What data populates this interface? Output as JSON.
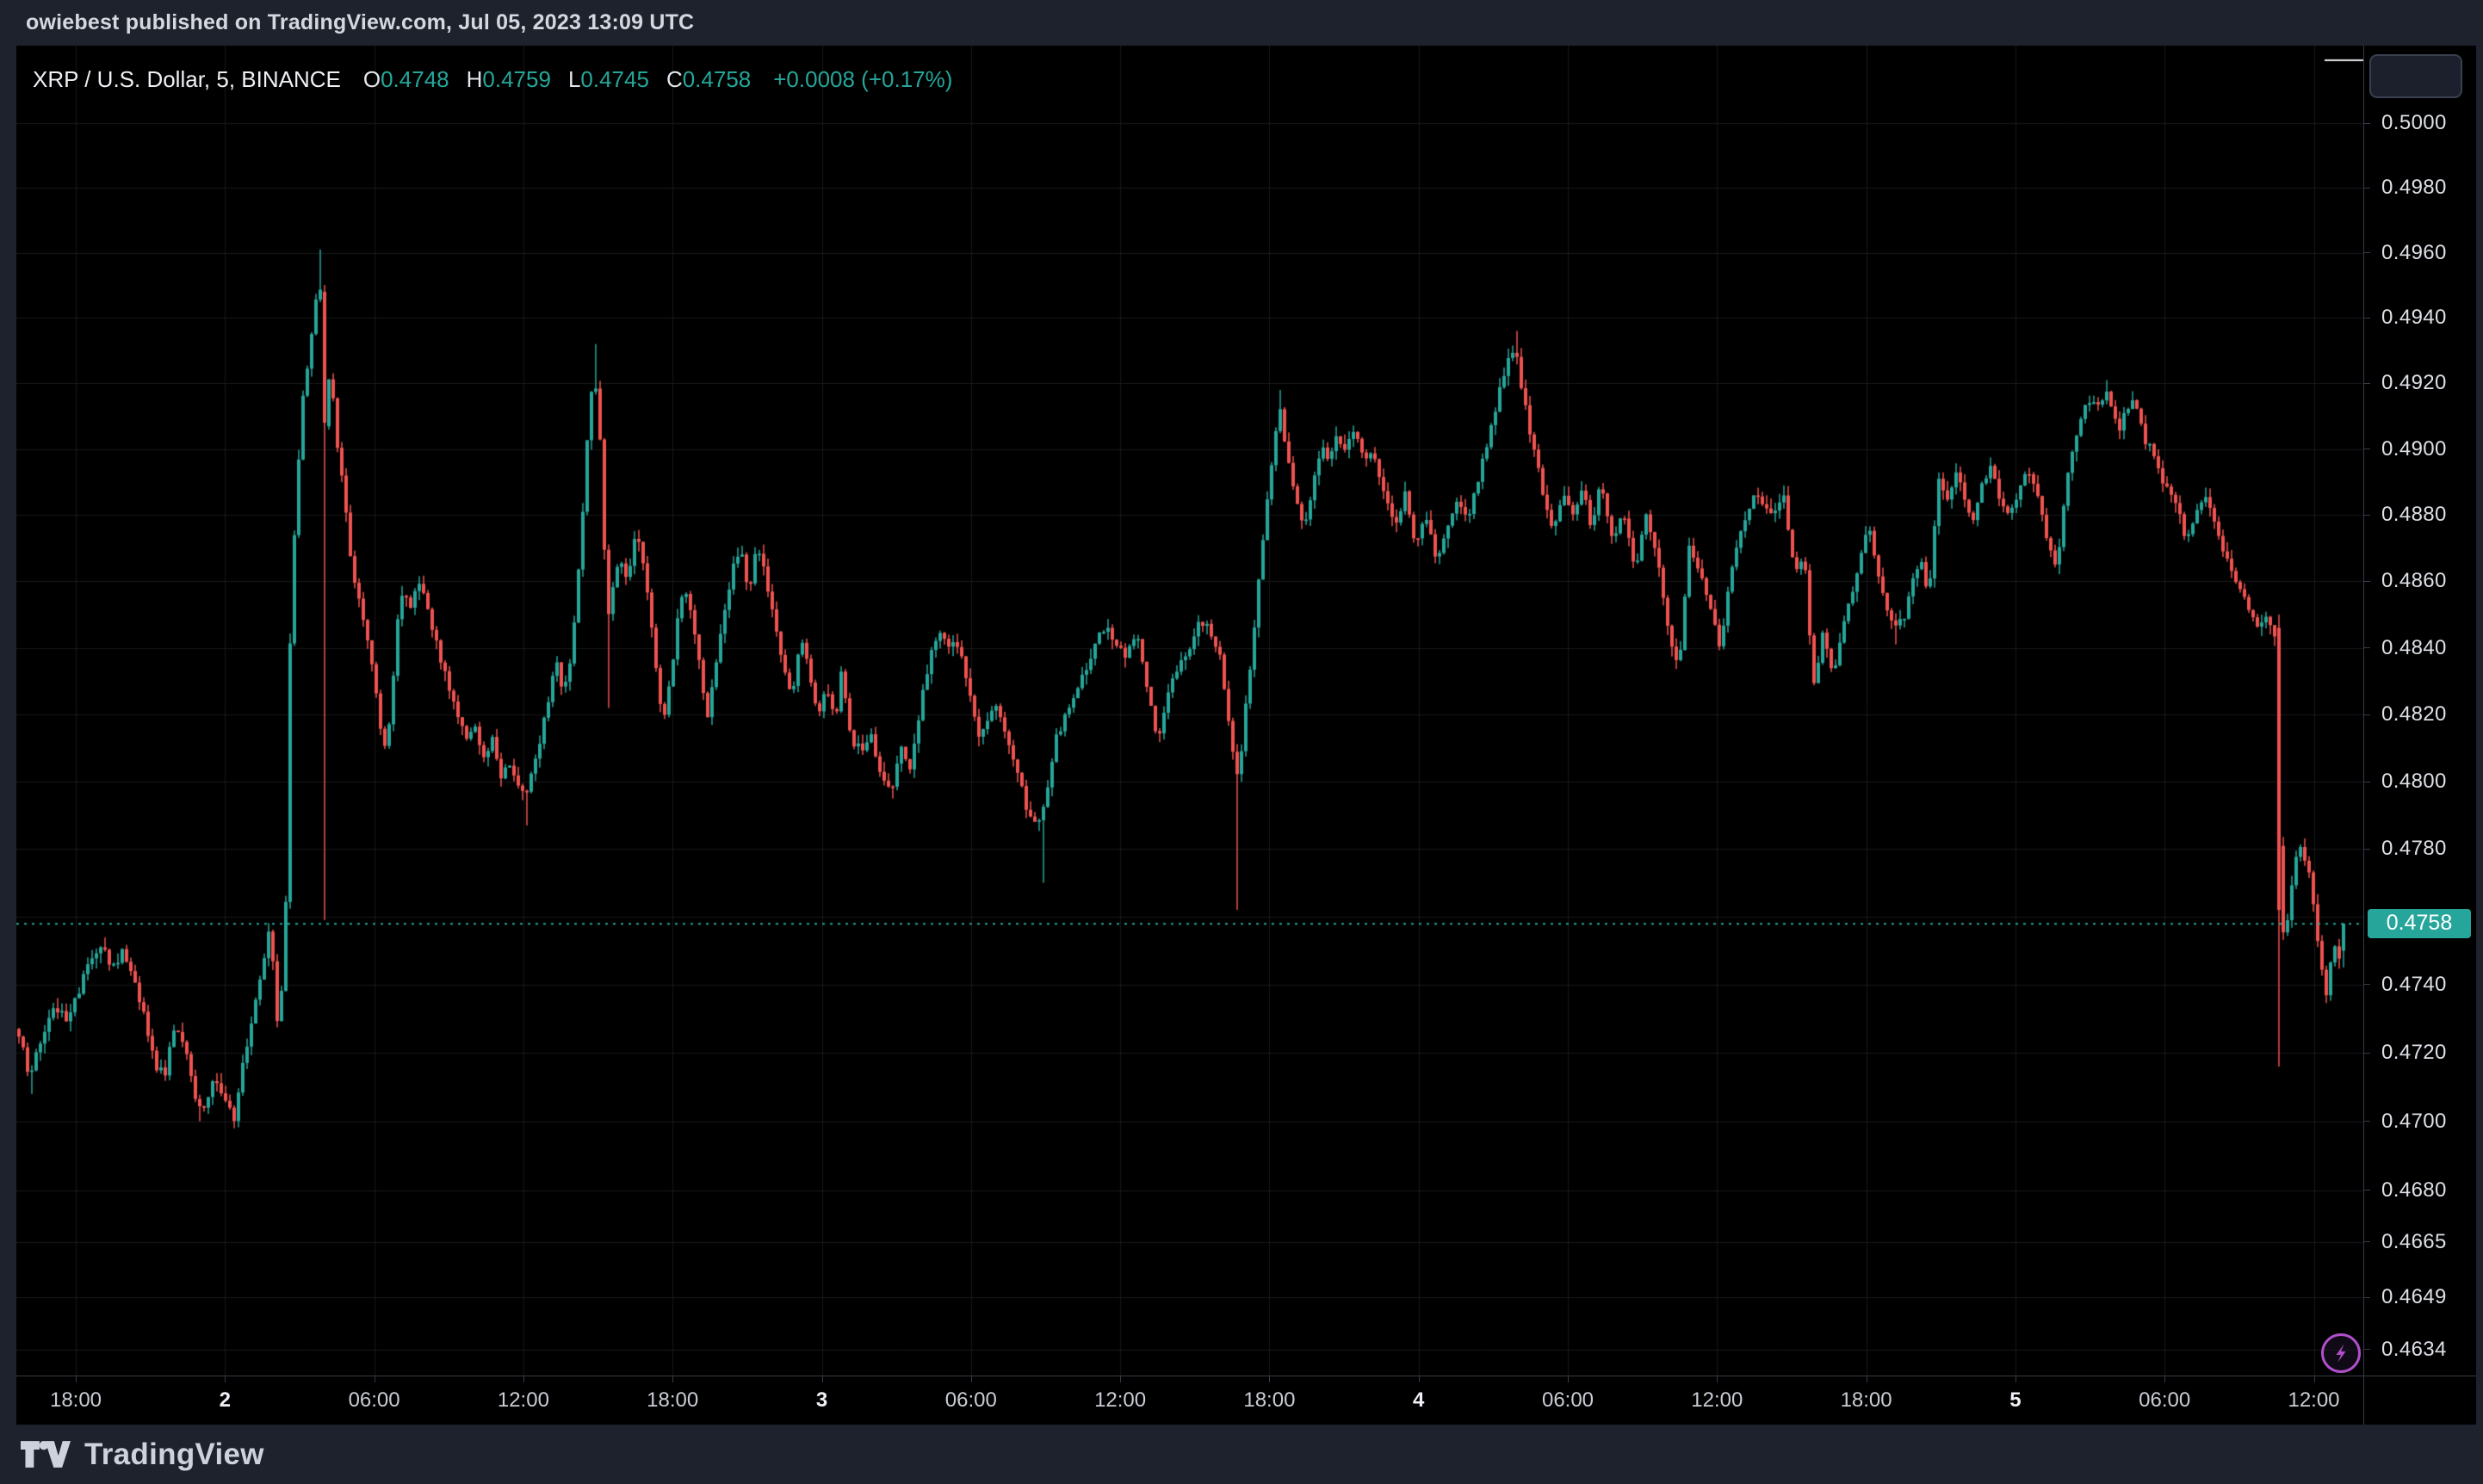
{
  "header": {
    "attribution": "owiebest published on TradingView.com, Jul 05, 2023 13:09 UTC"
  },
  "legend": {
    "symbol": "XRP / U.S. Dollar, 5, BINANCE",
    "items": [
      {
        "label": "O",
        "value": "0.4748"
      },
      {
        "label": "H",
        "value": "0.4759"
      },
      {
        "label": "L",
        "value": "0.4745"
      },
      {
        "label": "C",
        "value": "0.4758"
      }
    ],
    "change": "+0.0008 (+0.17%)"
  },
  "price_axis": {
    "current_price_label": "0.4758",
    "ticks": [
      {
        "label": "0.5000",
        "value": 0.5
      },
      {
        "label": "0.4980",
        "value": 0.498
      },
      {
        "label": "0.4960",
        "value": 0.496
      },
      {
        "label": "0.4940",
        "value": 0.494
      },
      {
        "label": "0.4920",
        "value": 0.492
      },
      {
        "label": "0.4900",
        "value": 0.49
      },
      {
        "label": "0.4880",
        "value": 0.488
      },
      {
        "label": "0.4860",
        "value": 0.486
      },
      {
        "label": "0.4840",
        "value": 0.484
      },
      {
        "label": "0.4820",
        "value": 0.482
      },
      {
        "label": "0.4800",
        "value": 0.48
      },
      {
        "label": "0.4780",
        "value": 0.478
      },
      {
        "label": "0.4740",
        "value": 0.474
      },
      {
        "label": "0.4720",
        "value": 0.472
      },
      {
        "label": "0.4700",
        "value": 0.47
      },
      {
        "label": "0.4680",
        "value": 0.468
      },
      {
        "label": "0.4665",
        "value": 0.4665
      },
      {
        "label": "0.4649",
        "value": 0.4649
      },
      {
        "label": "0.4634",
        "value": 0.4634
      }
    ],
    "grid_only_levels": [
      0.476
    ]
  },
  "time_axis": {
    "ticks": [
      {
        "label": "18:00",
        "bold": false
      },
      {
        "label": "2",
        "bold": true
      },
      {
        "label": "06:00",
        "bold": false
      },
      {
        "label": "12:00",
        "bold": false
      },
      {
        "label": "18:00",
        "bold": false
      },
      {
        "label": "3",
        "bold": true
      },
      {
        "label": "06:00",
        "bold": false
      },
      {
        "label": "12:00",
        "bold": false
      },
      {
        "label": "18:00",
        "bold": false
      },
      {
        "label": "4",
        "bold": true
      },
      {
        "label": "06:00",
        "bold": false
      },
      {
        "label": "12:00",
        "bold": false
      },
      {
        "label": "18:00",
        "bold": false
      },
      {
        "label": "5",
        "bold": true
      },
      {
        "label": "06:00",
        "bold": false
      },
      {
        "label": "12:00",
        "bold": false
      }
    ]
  },
  "footer": {
    "brand": "TradingView"
  },
  "icons": {
    "lightning": "lightning-bolt",
    "brand_glyph": "tradingview-logo"
  },
  "colors": {
    "up": "#26a69a",
    "down": "#ef5350",
    "accent": "#26a69a",
    "purple": "#b14fcb",
    "plot_bg": "#000000",
    "frame_bg": "#1e222d",
    "grid": "#191919",
    "border": "#363b47",
    "axis_text": "#dde0e6",
    "tag_text": "#ffffff"
  },
  "chart_data": {
    "type": "candlestick",
    "title": "XRP / U.S. Dollar, 5, BINANCE",
    "symbol": "XRP / U.S. Dollar",
    "interval": "5",
    "exchange": "BINANCE",
    "ohlc": {
      "open": 0.4748,
      "high": 0.4759,
      "low": 0.4745,
      "close": 0.4758,
      "change": "+0.0008",
      "change_pct": "+0.17%"
    },
    "last_price": 0.4758,
    "scale": "log",
    "ylim": [
      0.4634,
      0.5012
    ],
    "xlabels_utc": [
      "18:00",
      "Jul 2",
      "06:00",
      "12:00",
      "18:00",
      "Jul 3",
      "06:00",
      "12:00",
      "18:00",
      "Jul 4",
      "06:00",
      "12:00",
      "18:00",
      "Jul 5",
      "06:00",
      "12:00"
    ],
    "grid": true,
    "legend_position": "top-left",
    "price_map": {
      "y0": 143,
      "k": 18743,
      "p0": 0.5
    },
    "plot": {
      "x0": 19,
      "x1": 2745,
      "y0": 53,
      "y1": 1598
    },
    "candle_start_x": 20,
    "candle_pitch": 5,
    "candle_count": 541,
    "time_ticks_x_start": 88,
    "time_ticks_spacing": 173.3,
    "price_path": [
      [
        20,
        0.4727
      ],
      [
        35,
        0.4713
      ],
      [
        50,
        0.4726
      ],
      [
        64,
        0.4733
      ],
      [
        78,
        0.473
      ],
      [
        92,
        0.4738
      ],
      [
        105,
        0.4748
      ],
      [
        118,
        0.4752
      ],
      [
        130,
        0.4744
      ],
      [
        143,
        0.475
      ],
      [
        156,
        0.4742
      ],
      [
        168,
        0.473
      ],
      [
        180,
        0.4716
      ],
      [
        192,
        0.4714
      ],
      [
        203,
        0.4729
      ],
      [
        214,
        0.4722
      ],
      [
        226,
        0.4708
      ],
      [
        238,
        0.4703
      ],
      [
        250,
        0.4713
      ],
      [
        261,
        0.4707
      ],
      [
        271,
        0.47
      ],
      [
        282,
        0.4716
      ],
      [
        294,
        0.4731
      ],
      [
        305,
        0.4744
      ],
      [
        314,
        0.476
      ],
      [
        322,
        0.4728
      ],
      [
        331,
        0.4748
      ],
      [
        338,
        0.4858
      ],
      [
        345,
        0.4888
      ],
      [
        352,
        0.4916
      ],
      [
        359,
        0.4928
      ],
      [
        366,
        0.4944
      ],
      [
        371,
        0.4957
      ],
      [
        377,
        0.4908
      ],
      [
        384,
        0.4925
      ],
      [
        391,
        0.4902
      ],
      [
        399,
        0.4888
      ],
      [
        407,
        0.4868
      ],
      [
        415,
        0.4856
      ],
      [
        423,
        0.4846
      ],
      [
        431,
        0.4836
      ],
      [
        439,
        0.4822
      ],
      [
        446,
        0.4808
      ],
      [
        453,
        0.4818
      ],
      [
        461,
        0.4846
      ],
      [
        469,
        0.4858
      ],
      [
        477,
        0.4852
      ],
      [
        485,
        0.4862
      ],
      [
        493,
        0.4855
      ],
      [
        502,
        0.4846
      ],
      [
        512,
        0.4836
      ],
      [
        522,
        0.4828
      ],
      [
        532,
        0.482
      ],
      [
        542,
        0.4812
      ],
      [
        552,
        0.4816
      ],
      [
        562,
        0.4808
      ],
      [
        572,
        0.4812
      ],
      [
        582,
        0.48
      ],
      [
        590,
        0.4806
      ],
      [
        598,
        0.48
      ],
      [
        606,
        0.4796
      ],
      [
        613,
        0.4798
      ],
      [
        621,
        0.4806
      ],
      [
        629,
        0.4814
      ],
      [
        637,
        0.4824
      ],
      [
        645,
        0.4838
      ],
      [
        653,
        0.4826
      ],
      [
        661,
        0.4834
      ],
      [
        669,
        0.4854
      ],
      [
        677,
        0.488
      ],
      [
        684,
        0.491
      ],
      [
        690,
        0.4926
      ],
      [
        697,
        0.4902
      ],
      [
        705,
        0.4848
      ],
      [
        713,
        0.486
      ],
      [
        721,
        0.4868
      ],
      [
        729,
        0.4858
      ],
      [
        737,
        0.4872
      ],
      [
        745,
        0.487
      ],
      [
        753,
        0.4856
      ],
      [
        762,
        0.4834
      ],
      [
        770,
        0.4818
      ],
      [
        779,
        0.483
      ],
      [
        788,
        0.485
      ],
      [
        796,
        0.4858
      ],
      [
        805,
        0.4848
      ],
      [
        814,
        0.4832
      ],
      [
        822,
        0.482
      ],
      [
        832,
        0.4836
      ],
      [
        842,
        0.4852
      ],
      [
        851,
        0.4864
      ],
      [
        860,
        0.487
      ],
      [
        870,
        0.4856
      ],
      [
        880,
        0.4872
      ],
      [
        890,
        0.486
      ],
      [
        900,
        0.4846
      ],
      [
        910,
        0.4834
      ],
      [
        920,
        0.4824
      ],
      [
        930,
        0.4844
      ],
      [
        940,
        0.4832
      ],
      [
        950,
        0.482
      ],
      [
        960,
        0.4828
      ],
      [
        970,
        0.4818
      ],
      [
        978,
        0.4834
      ],
      [
        988,
        0.4812
      ],
      [
        1000,
        0.481
      ],
      [
        1012,
        0.4814
      ],
      [
        1024,
        0.48
      ],
      [
        1036,
        0.4797
      ],
      [
        1046,
        0.4812
      ],
      [
        1056,
        0.4803
      ],
      [
        1068,
        0.482
      ],
      [
        1080,
        0.4838
      ],
      [
        1092,
        0.4845
      ],
      [
        1104,
        0.4841
      ],
      [
        1116,
        0.4839
      ],
      [
        1126,
        0.4827
      ],
      [
        1138,
        0.4812
      ],
      [
        1148,
        0.4818
      ],
      [
        1158,
        0.4824
      ],
      [
        1170,
        0.4812
      ],
      [
        1182,
        0.4803
      ],
      [
        1194,
        0.479
      ],
      [
        1205,
        0.4787
      ],
      [
        1214,
        0.4793
      ],
      [
        1226,
        0.4812
      ],
      [
        1238,
        0.482
      ],
      [
        1250,
        0.4828
      ],
      [
        1262,
        0.4834
      ],
      [
        1272,
        0.4841
      ],
      [
        1284,
        0.4847
      ],
      [
        1296,
        0.4842
      ],
      [
        1308,
        0.4838
      ],
      [
        1320,
        0.4845
      ],
      [
        1332,
        0.4828
      ],
      [
        1344,
        0.4812
      ],
      [
        1356,
        0.4826
      ],
      [
        1368,
        0.4834
      ],
      [
        1380,
        0.4838
      ],
      [
        1394,
        0.4848
      ],
      [
        1406,
        0.4845
      ],
      [
        1418,
        0.4838
      ],
      [
        1428,
        0.4815
      ],
      [
        1438,
        0.48
      ],
      [
        1447,
        0.4822
      ],
      [
        1455,
        0.4842
      ],
      [
        1463,
        0.4862
      ],
      [
        1471,
        0.4882
      ],
      [
        1479,
        0.49
      ],
      [
        1487,
        0.4911
      ],
      [
        1495,
        0.4898
      ],
      [
        1505,
        0.4886
      ],
      [
        1515,
        0.4876
      ],
      [
        1525,
        0.489
      ],
      [
        1535,
        0.4902
      ],
      [
        1545,
        0.4896
      ],
      [
        1553,
        0.4904
      ],
      [
        1562,
        0.4899
      ],
      [
        1572,
        0.4906
      ],
      [
        1584,
        0.4896
      ],
      [
        1596,
        0.4898
      ],
      [
        1608,
        0.4886
      ],
      [
        1620,
        0.4877
      ],
      [
        1632,
        0.4886
      ],
      [
        1644,
        0.4872
      ],
      [
        1656,
        0.488
      ],
      [
        1668,
        0.4866
      ],
      [
        1680,
        0.4874
      ],
      [
        1692,
        0.4884
      ],
      [
        1704,
        0.4878
      ],
      [
        1716,
        0.489
      ],
      [
        1728,
        0.4902
      ],
      [
        1740,
        0.4916
      ],
      [
        1752,
        0.4928
      ],
      [
        1760,
        0.4931
      ],
      [
        1768,
        0.4918
      ],
      [
        1776,
        0.4906
      ],
      [
        1784,
        0.4898
      ],
      [
        1792,
        0.4886
      ],
      [
        1804,
        0.4876
      ],
      [
        1816,
        0.4886
      ],
      [
        1828,
        0.488
      ],
      [
        1840,
        0.4888
      ],
      [
        1848,
        0.4874
      ],
      [
        1858,
        0.489
      ],
      [
        1873,
        0.4872
      ],
      [
        1885,
        0.4882
      ],
      [
        1900,
        0.4863
      ],
      [
        1912,
        0.488
      ],
      [
        1925,
        0.4868
      ],
      [
        1938,
        0.4845
      ],
      [
        1950,
        0.4832
      ],
      [
        1962,
        0.487
      ],
      [
        1975,
        0.4862
      ],
      [
        1988,
        0.4852
      ],
      [
        1998,
        0.484
      ],
      [
        2010,
        0.4862
      ],
      [
        2022,
        0.4874
      ],
      [
        2035,
        0.4886
      ],
      [
        2048,
        0.4884
      ],
      [
        2060,
        0.488
      ],
      [
        2072,
        0.4886
      ],
      [
        2085,
        0.4862
      ],
      [
        2096,
        0.4866
      ],
      [
        2106,
        0.4828
      ],
      [
        2118,
        0.4845
      ],
      [
        2130,
        0.4832
      ],
      [
        2142,
        0.4848
      ],
      [
        2156,
        0.486
      ],
      [
        2170,
        0.4878
      ],
      [
        2180,
        0.4862
      ],
      [
        2190,
        0.4854
      ],
      [
        2200,
        0.4846
      ],
      [
        2212,
        0.485
      ],
      [
        2222,
        0.486
      ],
      [
        2232,
        0.4866
      ],
      [
        2240,
        0.4856
      ],
      [
        2252,
        0.489
      ],
      [
        2262,
        0.4884
      ],
      [
        2272,
        0.4892
      ],
      [
        2282,
        0.4886
      ],
      [
        2292,
        0.4878
      ],
      [
        2302,
        0.489
      ],
      [
        2312,
        0.4894
      ],
      [
        2322,
        0.4886
      ],
      [
        2334,
        0.4878
      ],
      [
        2344,
        0.4888
      ],
      [
        2355,
        0.4895
      ],
      [
        2366,
        0.4888
      ],
      [
        2378,
        0.4872
      ],
      [
        2390,
        0.4864
      ],
      [
        2400,
        0.489
      ],
      [
        2412,
        0.4905
      ],
      [
        2424,
        0.4915
      ],
      [
        2436,
        0.4912
      ],
      [
        2448,
        0.4918
      ],
      [
        2460,
        0.4905
      ],
      [
        2470,
        0.4912
      ],
      [
        2480,
        0.4915
      ],
      [
        2492,
        0.4902
      ],
      [
        2504,
        0.4898
      ],
      [
        2514,
        0.4888
      ],
      [
        2526,
        0.4886
      ],
      [
        2538,
        0.4872
      ],
      [
        2548,
        0.4878
      ],
      [
        2560,
        0.4886
      ],
      [
        2572,
        0.4878
      ],
      [
        2584,
        0.4868
      ],
      [
        2596,
        0.486
      ],
      [
        2608,
        0.4854
      ],
      [
        2620,
        0.4846
      ],
      [
        2632,
        0.485
      ],
      [
        2642,
        0.4844
      ],
      [
        2648,
        0.4768
      ],
      [
        2654,
        0.4748
      ],
      [
        2660,
        0.4768
      ],
      [
        2666,
        0.4776
      ],
      [
        2672,
        0.4782
      ],
      [
        2678,
        0.4776
      ],
      [
        2684,
        0.477
      ],
      [
        2690,
        0.4756
      ],
      [
        2696,
        0.4744
      ],
      [
        2702,
        0.4738
      ],
      [
        2708,
        0.4748
      ],
      [
        2714,
        0.4752
      ],
      [
        2720,
        0.4746
      ],
      [
        2727,
        0.4754
      ],
      [
        2740,
        0.4758
      ]
    ],
    "wick_events": [
      {
        "x": 35,
        "low": 0.4708
      },
      {
        "x": 233,
        "low": 0.47
      },
      {
        "x": 271,
        "low": 0.4698
      },
      {
        "x": 371,
        "high": 0.4961
      },
      {
        "x": 377,
        "open": 0.4948,
        "close": 0.4908,
        "low": 0.4759
      },
      {
        "x": 613,
        "low": 0.4787
      },
      {
        "x": 690,
        "high": 0.4932
      },
      {
        "x": 705,
        "low": 0.4822
      },
      {
        "x": 1036,
        "low": 0.4795
      },
      {
        "x": 1214,
        "low": 0.477
      },
      {
        "x": 1438,
        "low": 0.4762
      },
      {
        "x": 1487,
        "high": 0.4918
      },
      {
        "x": 1760,
        "high": 0.4936
      },
      {
        "x": 2200,
        "low": 0.4841
      },
      {
        "x": 2448,
        "high": 0.4921
      },
      {
        "x": 2648,
        "open": 0.4846,
        "close": 0.4762,
        "low": 0.4716,
        "high": 0.485
      },
      {
        "x": 2722,
        "open": 0.475,
        "close": 0.4758
      }
    ]
  }
}
